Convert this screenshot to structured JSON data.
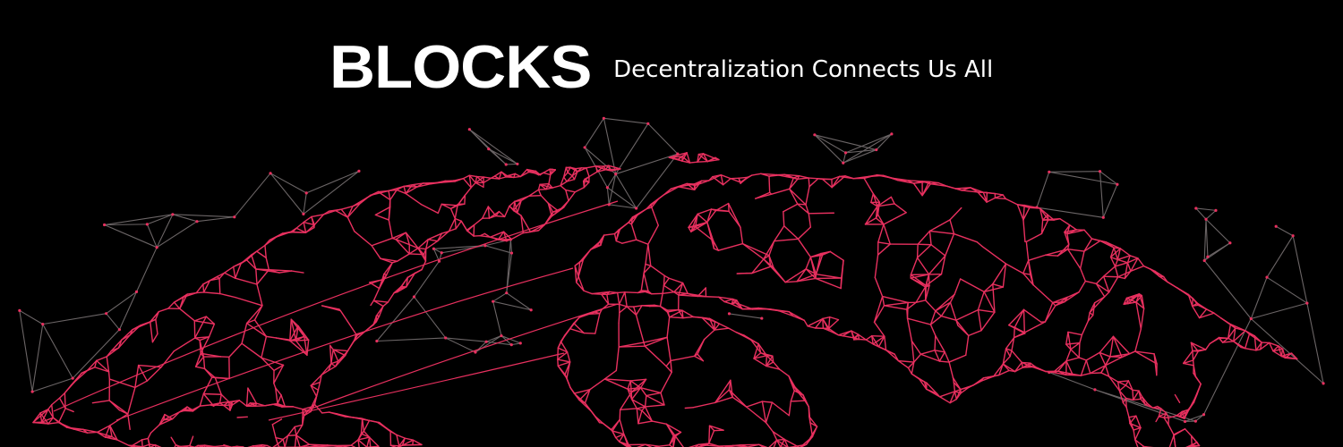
{
  "brand": {
    "name": "BLOCKS",
    "tagline": "Decentralization Connects Us All"
  },
  "colors": {
    "background": "#000000",
    "text": "#ffffff",
    "land_network": "#e8305f",
    "sky_network": "#6b6566"
  }
}
